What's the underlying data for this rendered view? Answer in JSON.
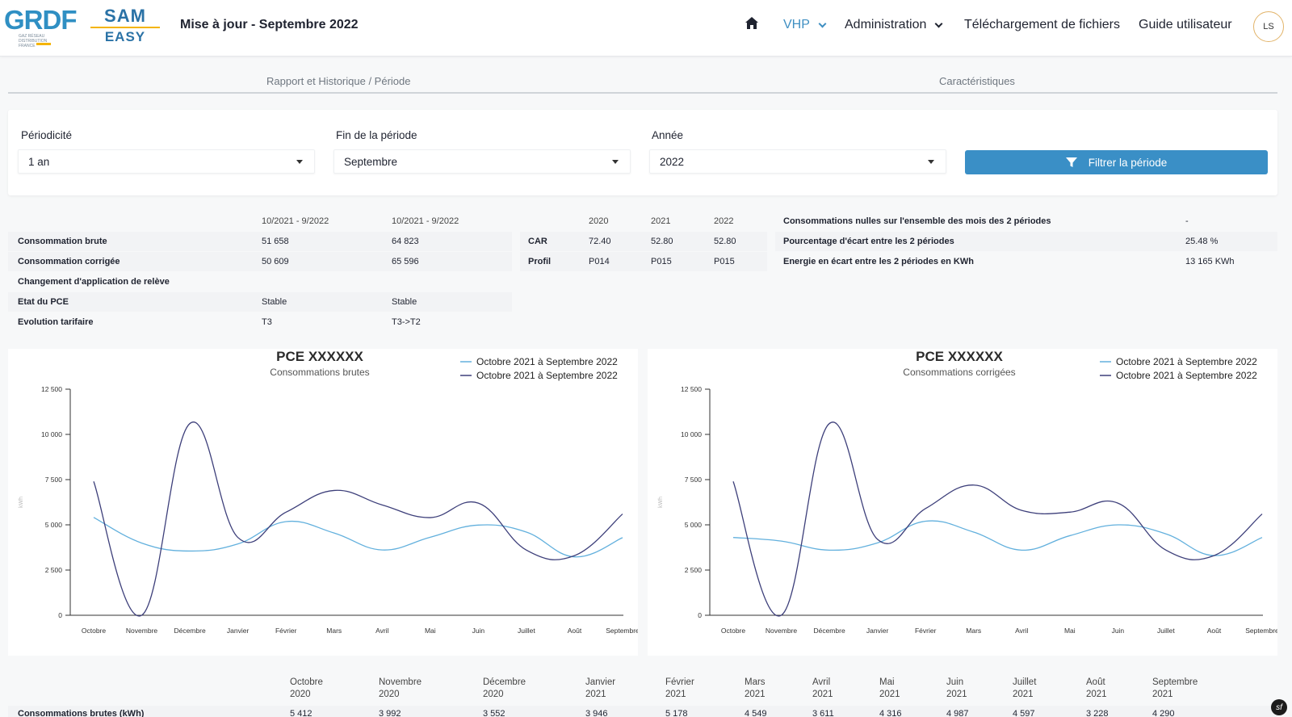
{
  "header": {
    "logo_grdf": "GRDF",
    "logo_grdf_tag": "GAZ RÉSEAU DISTRIBUTION FRANCE",
    "logo_sam_line1": "SAM",
    "logo_sam_line2": "EASY",
    "update_title": "Mise à jour - Septembre 2022",
    "home_icon": "home-icon",
    "nav": [
      {
        "label": "VHP",
        "dropdown": true,
        "active": true
      },
      {
        "label": "Administration",
        "dropdown": true,
        "active": false
      },
      {
        "label": "Téléchargement de fichiers",
        "dropdown": false,
        "active": false
      },
      {
        "label": "Guide utilisateur",
        "dropdown": false,
        "active": false
      }
    ],
    "avatar": "LS",
    "accent_color": "#3a8fc6"
  },
  "tabs": [
    {
      "label": "Rapport et Historique / Période"
    },
    {
      "label": "Caractéristiques"
    }
  ],
  "filters": {
    "periodicite_label": "Périodicité",
    "periodicite_value": "1 an",
    "fin_label": "Fin de la période",
    "fin_value": "Septembre",
    "annee_label": "Année",
    "annee_value": "2022",
    "button_label": "Filtrer la période",
    "button_icon": "funnel-icon"
  },
  "table_periods": {
    "headers": [
      "10/2021 - 9/2022",
      "10/2021 - 9/2022"
    ],
    "rows": [
      {
        "label": "Consommation brute",
        "v1": "51 658",
        "v2": "64 823"
      },
      {
        "label": "Consommation corrigée",
        "v1": "50 609",
        "v2": "65 596"
      },
      {
        "label": "Changement d'application de relève",
        "v1": "",
        "v2": ""
      },
      {
        "label": "Etat du PCE",
        "v1": "Stable",
        "v2": "Stable"
      },
      {
        "label": "Evolution tarifaire",
        "v1": "T3",
        "v2": "T3->T2"
      }
    ]
  },
  "table_years": {
    "headers": [
      "2020",
      "2021",
      "2022"
    ],
    "rows": [
      {
        "label": "CAR",
        "values": [
          "72.40",
          "52.80",
          "52.80"
        ]
      },
      {
        "label": "Profil",
        "values": [
          "P014",
          "P015",
          "P015"
        ]
      }
    ]
  },
  "table_gap": {
    "rows": [
      {
        "label": "Consommations nulles sur l'ensemble des mois des 2 périodes",
        "value": "-"
      },
      {
        "label": "Pourcentage d'écart entre les 2 périodes",
        "value": "25.48 %"
      },
      {
        "label": "Energie en écart entre les 2 périodes en KWh",
        "value": "13 165 KWh"
      }
    ]
  },
  "chart_data": [
    {
      "type": "line",
      "title": "PCE XXXXXX",
      "subtitle": "Consommations brutes",
      "ylabel": "kWh",
      "ylim": [
        0,
        12500
      ],
      "yticks": [
        0,
        2500,
        5000,
        7500,
        10000,
        12500
      ],
      "ytick_labels": [
        "0",
        "2 500",
        "5 000",
        "7 500",
        "10 000",
        "12 500"
      ],
      "categories": [
        "Octobre",
        "Novembre",
        "Décembre",
        "Janvier",
        "Février",
        "Mars",
        "Avril",
        "Mai",
        "Juin",
        "Juillet",
        "Août",
        "Septembre"
      ],
      "legend_position": "top-right",
      "series": [
        {
          "name": "Octobre 2021 à Septembre 2022",
          "color": "#62b0dd",
          "values": [
            5412,
            3992,
            3552,
            3946,
            5178,
            4549,
            3611,
            4316,
            4987,
            4597,
            3228,
            4290
          ]
        },
        {
          "name": "Octobre 2021 à Septembre 2022",
          "color": "#3d3f7a",
          "values": [
            7400,
            0,
            10600,
            4300,
            5700,
            6900,
            6100,
            5400,
            6200,
            3600,
            3300,
            5600
          ]
        }
      ]
    },
    {
      "type": "line",
      "title": "PCE XXXXXX",
      "subtitle": "Consommations corrigées",
      "ylabel": "kWh",
      "ylim": [
        0,
        12500
      ],
      "yticks": [
        0,
        2500,
        5000,
        7500,
        10000,
        12500
      ],
      "ytick_labels": [
        "0",
        "2 500",
        "5 000",
        "7 500",
        "10 000",
        "12 500"
      ],
      "categories": [
        "Octobre",
        "Novembre",
        "Décembre",
        "Janvier",
        "Février",
        "Mars",
        "Avril",
        "Mai",
        "Juin",
        "Juillet",
        "Août",
        "Septembre"
      ],
      "legend_position": "top-right",
      "series": [
        {
          "name": "Octobre 2021 à Septembre 2022",
          "color": "#62b0dd",
          "values": [
            4300,
            4100,
            3600,
            4000,
            5200,
            4600,
            3600,
            4400,
            5000,
            4500,
            3300,
            4300
          ]
        },
        {
          "name": "Octobre 2021 à Septembre 2022",
          "color": "#3d3f7a",
          "values": [
            7400,
            0,
            10600,
            4200,
            5900,
            7200,
            5800,
            5700,
            6200,
            3600,
            3300,
            5600
          ]
        }
      ]
    }
  ],
  "bottom_table": {
    "months": [
      "Octobre\n2020",
      "Novembre\n2020",
      "Décembre\n2020",
      "Janvier\n2021",
      "Février\n2021",
      "Mars\n2021",
      "Avril\n2021",
      "Mai\n2021",
      "Juin\n2021",
      "Juillet\n2021",
      "Août\n2021",
      "Septembre\n2021"
    ],
    "row_label": "Consommations brutes (kWh)",
    "values": [
      "5 412",
      "3 992",
      "3 552",
      "3 946",
      "5 178",
      "4 549",
      "3 611",
      "4 316",
      "4 987",
      "4 597",
      "3 228",
      "4 290"
    ]
  }
}
